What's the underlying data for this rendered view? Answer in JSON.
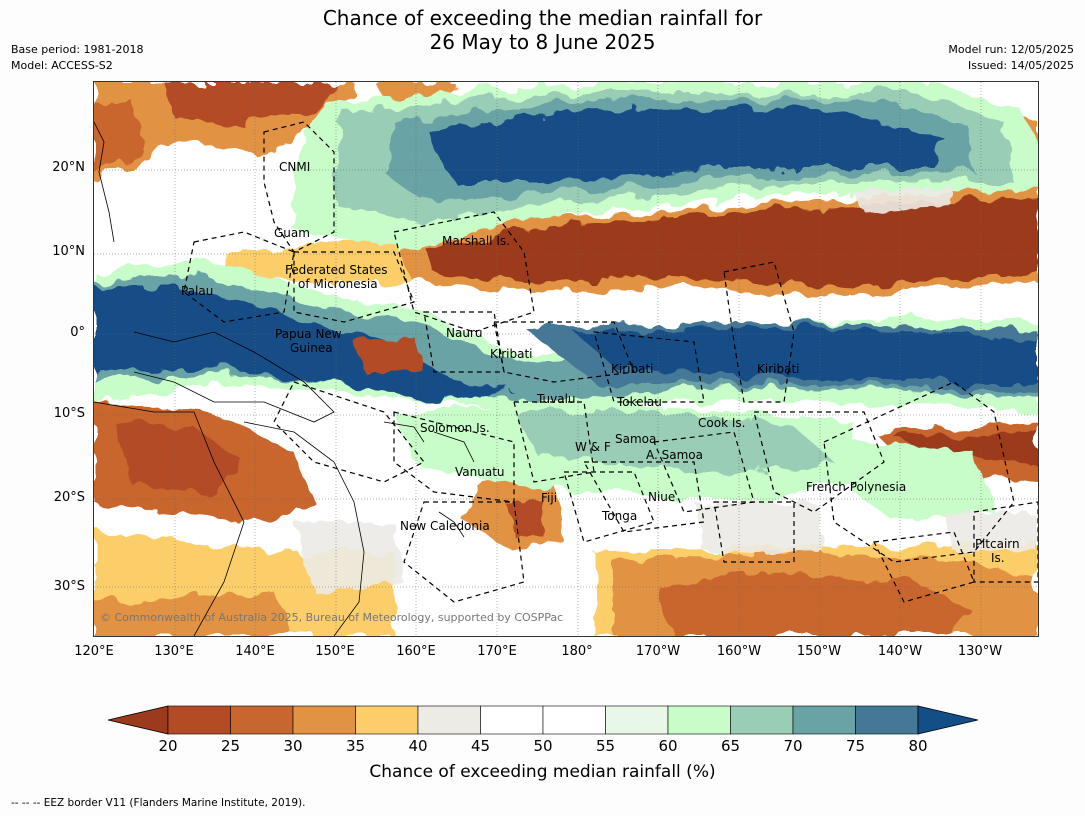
{
  "title": {
    "line1": "Chance of exceeding the median rainfall for",
    "line2": "26 May to 8 June 2025"
  },
  "meta_left": {
    "line1": "Base period: 1981-2018",
    "line2": "Model: ACCESS-S2"
  },
  "meta_right": {
    "line1": "Model run: 12/05/2025",
    "line2": "Issued: 14/05/2025"
  },
  "map": {
    "lat_labels": [
      "20°N",
      "10°N",
      "0°",
      "10°S",
      "20°S",
      "30°S"
    ],
    "lon_labels": [
      "120°E",
      "130°E",
      "140°E",
      "150°E",
      "160°E",
      "170°E",
      "180°",
      "170°W",
      "160°W",
      "150°W",
      "140°W",
      "130°W"
    ],
    "region_labels": {
      "cnmi": "CNMI",
      "guam": "Guam",
      "marshall": "Marshall Is.",
      "fsm1": "Federated States",
      "fsm2": "of Micronesia",
      "palau": "Palau",
      "png1": "Papua New",
      "png2": "Guinea",
      "nauru": "Nauru",
      "kiribati1": "Kiribati",
      "kiribati2": "Kiribati",
      "kiribati3": "Kiribati",
      "tuvalu": "Tuvalu",
      "tokelau": "Tokelau",
      "cook": "Cook Is.",
      "solomon": "Solomon Is.",
      "wf": "W & F",
      "samoa": "Samoa",
      "asamoa": "A. Samoa",
      "vanuatu": "Vanuatu",
      "fiji": "Fiji",
      "niue": "Niue",
      "tonga": "Tonga",
      "frpoly": "French Polynesia",
      "newcal": "New Caledonia",
      "pitcairn1": "Pitcairn",
      "pitcairn2": "Is."
    },
    "copyright": "© Commonwealth of Australia 2025, Bureau of Meteorology, supported by COSPPac"
  },
  "colorbar": {
    "ticks": [
      "20",
      "25",
      "30",
      "35",
      "40",
      "45",
      "50",
      "55",
      "60",
      "65",
      "70",
      "75",
      "80"
    ],
    "colors": [
      "#9c3a1c",
      "#b34c25",
      "#c8662f",
      "#e19242",
      "#fcce6b",
      "#edebe6",
      "#ffffff",
      "#ffffff",
      "#e8f7e8",
      "#c8fcc8",
      "#99cdb5",
      "#6aa3a6",
      "#457896",
      "#144e87"
    ],
    "label": "Chance of exceeding median rainfall (%)"
  },
  "footnote": "--  --  -- EEZ border V11 (Flanders Marine Institute, 2019)."
}
